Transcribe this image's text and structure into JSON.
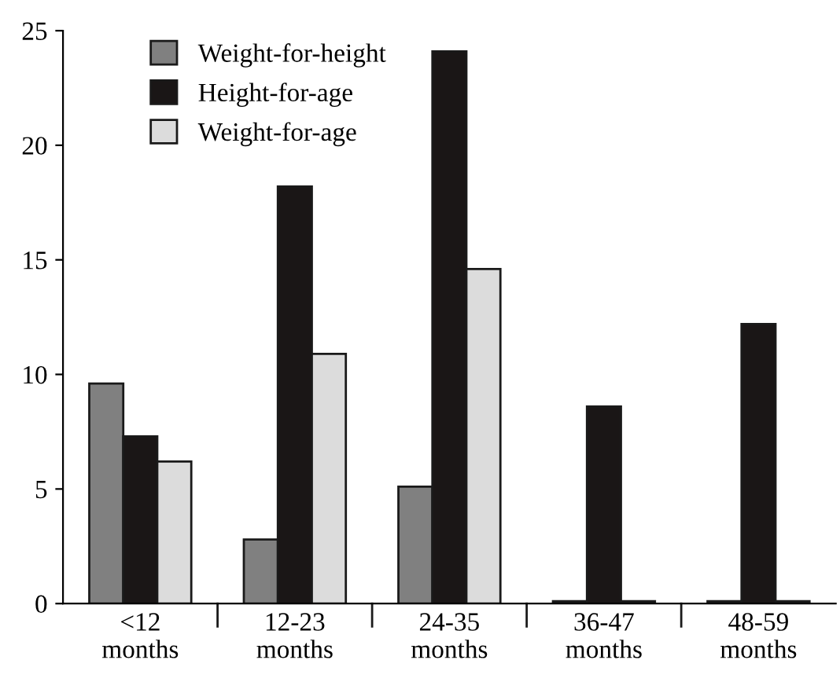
{
  "chart_data": {
    "type": "bar",
    "categories": [
      "<12\nmonths",
      "12-23\nmonths",
      "24-35\nmonths",
      "36-47\nmonths",
      "48-59\nmonths"
    ],
    "series": [
      {
        "name": "Weight-for-height",
        "color": "#808080",
        "values": [
          9.6,
          2.8,
          5.1,
          0.1,
          0.1
        ]
      },
      {
        "name": "Height-for-age",
        "color": "#1a1616",
        "values": [
          7.3,
          18.2,
          24.1,
          8.6,
          12.2
        ]
      },
      {
        "name": "Weight-for-age",
        "color": "#dcdcdc",
        "values": [
          6.2,
          10.9,
          14.6,
          0.1,
          0.1
        ]
      }
    ],
    "ylim": [
      0,
      25
    ],
    "yticks": [
      0,
      5,
      10,
      15,
      20,
      25
    ],
    "grid": false,
    "legend": "top left"
  }
}
